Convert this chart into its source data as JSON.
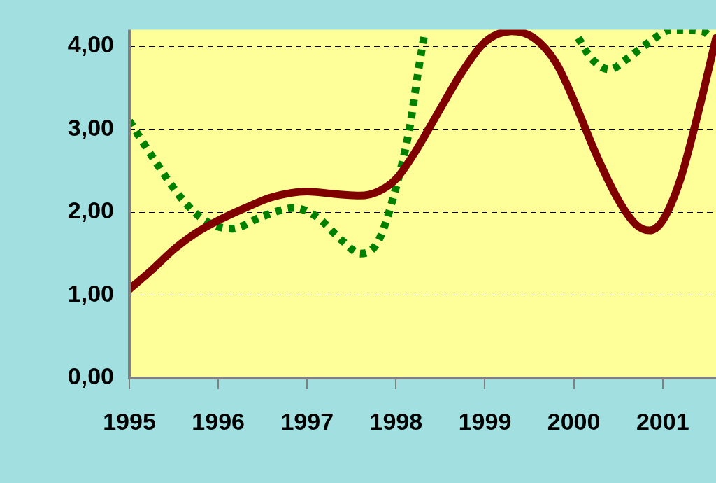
{
  "chart_data": {
    "type": "line",
    "xlim": [
      1995,
      2001.6
    ],
    "xticks": [
      1995,
      1996,
      1997,
      1998,
      1999,
      2000,
      2001
    ],
    "ylim": [
      0,
      4.2
    ],
    "yticks": [
      {
        "value": 0,
        "label": "0,00"
      },
      {
        "value": 1,
        "label": "1,00"
      },
      {
        "value": 2,
        "label": "2,00"
      },
      {
        "value": 3,
        "label": "3,00"
      },
      {
        "value": 4,
        "label": "4,00"
      }
    ],
    "grid": "y",
    "legend": false,
    "marker": "none",
    "series": [
      {
        "color": "#800000",
        "line_style": "solid",
        "x": [
          1995,
          1995.25,
          1995.5,
          1995.75,
          1996,
          1996.3,
          1996.6,
          1997,
          1997.3,
          1997.6,
          1997.8,
          1998,
          1998.2,
          1998.5,
          1998.75,
          1999,
          1999.3,
          1999.55,
          1999.8,
          2000,
          2000.25,
          2000.5,
          2000.7,
          2000.85,
          2001,
          2001.2,
          2001.4,
          2001.6
        ],
        "values": [
          1.07,
          1.3,
          1.55,
          1.75,
          1.9,
          2.05,
          2.18,
          2.25,
          2.22,
          2.2,
          2.25,
          2.4,
          2.7,
          3.25,
          3.7,
          4.05,
          4.18,
          4.1,
          3.8,
          3.35,
          2.7,
          2.15,
          1.85,
          1.78,
          1.9,
          2.4,
          3.2,
          4.1
        ]
      },
      {
        "color": "#008000",
        "line_style": "dotted",
        "x": [
          1995,
          1995.3,
          1995.6,
          1995.85,
          1996.15,
          1996.5,
          1996.85,
          1997.1,
          1997.4,
          1997.6,
          1997.8,
          1998,
          1998.15,
          1998.25,
          1998.32,
          1999,
          2000.05,
          2000.2,
          2000.4,
          2000.6,
          2000.85,
          2001.1,
          2001.45,
          2001.55
        ],
        "values": [
          3.1,
          2.6,
          2.15,
          1.9,
          1.8,
          1.95,
          2.05,
          1.95,
          1.65,
          1.5,
          1.65,
          2.3,
          3.0,
          3.7,
          4.15,
          null,
          4.1,
          3.85,
          3.72,
          3.85,
          4.05,
          4.2,
          4.18,
          4.1
        ]
      }
    ]
  }
}
